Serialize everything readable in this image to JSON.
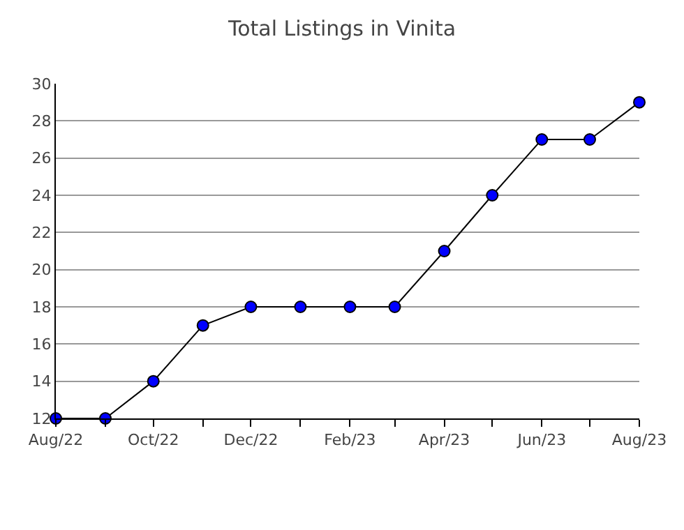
{
  "chart_data": {
    "type": "line",
    "title": "Total Listings in Vinita",
    "x": [
      "2022-08",
      "2022-09",
      "2022-10",
      "2022-11",
      "2022-12",
      "2023-01",
      "2023-02",
      "2023-03",
      "2023-04",
      "2023-05",
      "2023-06",
      "2023-07",
      "2023-08"
    ],
    "series": [
      {
        "color": "#0000ff",
        "values": [
          12,
          12,
          14,
          17,
          18,
          18,
          18,
          18,
          21,
          24,
          27,
          27,
          29
        ]
      }
    ],
    "xlim": [
      "2022-08",
      "2023-08"
    ],
    "xticks": [
      {
        "value": "2022-08",
        "label": "Aug/22"
      },
      {
        "value": "2022-09",
        "label": null
      },
      {
        "value": "2022-10",
        "label": "Oct/22"
      },
      {
        "value": "2022-11",
        "label": null
      },
      {
        "value": "2022-12",
        "label": "Dec/22"
      },
      {
        "value": "2023-01",
        "label": null
      },
      {
        "value": "2023-02",
        "label": "Feb/23"
      },
      {
        "value": "2023-03",
        "label": null
      },
      {
        "value": "2023-04",
        "label": "Apr/23"
      },
      {
        "value": "2023-05",
        "label": null
      },
      {
        "value": "2023-06",
        "label": "Jun/23"
      },
      {
        "value": "2023-07",
        "label": null
      },
      {
        "value": "2023-08",
        "label": "Aug/23"
      }
    ],
    "ylim": [
      12,
      30
    ],
    "yticks": [
      12,
      14,
      16,
      18,
      20,
      22,
      24,
      26,
      28,
      30
    ],
    "grid": "y",
    "marker": "circle",
    "line_style": "solid",
    "legend": false
  }
}
